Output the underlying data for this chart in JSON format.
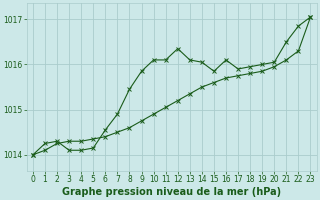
{
  "title": "Graphe pression niveau de la mer (hPa)",
  "background_color": "#cce8e8",
  "grid_color": "#aacccc",
  "line_color": "#1a5c1a",
  "xlim": [
    -0.5,
    23.5
  ],
  "ylim": [
    1013.65,
    1017.35
  ],
  "yticks": [
    1014,
    1015,
    1016,
    1017
  ],
  "xticks": [
    0,
    1,
    2,
    3,
    4,
    5,
    6,
    7,
    8,
    9,
    10,
    11,
    12,
    13,
    14,
    15,
    16,
    17,
    18,
    19,
    20,
    21,
    22,
    23
  ],
  "series1_x": [
    0,
    1,
    2,
    3,
    4,
    5,
    6,
    7,
    8,
    9,
    10,
    11,
    12,
    13,
    14,
    15,
    16,
    17,
    18,
    19,
    20,
    21,
    22,
    23
  ],
  "series1_y": [
    1014.0,
    1014.25,
    1014.3,
    1014.1,
    1014.1,
    1014.15,
    1014.55,
    1014.9,
    1015.45,
    1015.85,
    1016.1,
    1016.1,
    1016.35,
    1016.1,
    1016.05,
    1015.85,
    1016.1,
    1015.9,
    1015.95,
    1016.0,
    1016.05,
    1016.5,
    1016.85,
    1017.05
  ],
  "series2_x": [
    0,
    1,
    2,
    3,
    4,
    5,
    6,
    7,
    8,
    9,
    10,
    11,
    12,
    13,
    14,
    15,
    16,
    17,
    18,
    19,
    20,
    21,
    22,
    23
  ],
  "series2_y": [
    1014.0,
    1014.1,
    1014.25,
    1014.3,
    1014.3,
    1014.35,
    1014.4,
    1014.5,
    1014.6,
    1014.75,
    1014.9,
    1015.05,
    1015.2,
    1015.35,
    1015.5,
    1015.6,
    1015.7,
    1015.75,
    1015.8,
    1015.85,
    1015.95,
    1016.1,
    1016.3,
    1017.05
  ],
  "title_fontsize": 7,
  "tick_fontsize": 5.5
}
